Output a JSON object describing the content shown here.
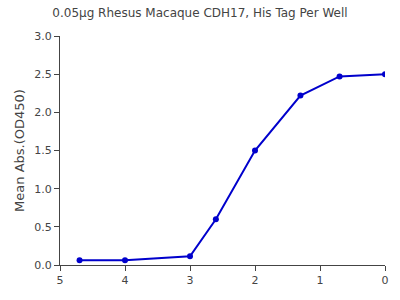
{
  "chart_data": {
    "type": "line",
    "title": "0.05μg Rhesus Macaque CDH17, His Tag Per Well",
    "ylabel": "Mean Abs.(OD450)",
    "x": [
      4.699,
      4.0,
      3.0,
      2.602,
      2.0,
      1.301,
      0.699,
      0.0
    ],
    "values": [
      0.063,
      0.063,
      0.113,
      0.6,
      1.5,
      2.22,
      2.47,
      2.5
    ],
    "color": "#0000cc",
    "marker": "circle",
    "xlim": [
      5,
      0
    ],
    "ylim": [
      0,
      3.0
    ],
    "yticks": [
      {
        "value": 0.0,
        "label": "0.0"
      },
      0.5,
      {
        "value": 1.0,
        "label": "1.0"
      },
      1.5,
      {
        "value": 2.0,
        "label": "2.0"
      },
      2.5,
      {
        "value": 3.0,
        "label": "3.0"
      }
    ],
    "xticks": [
      5,
      4,
      3,
      2,
      1,
      0
    ],
    "grid": false
  }
}
